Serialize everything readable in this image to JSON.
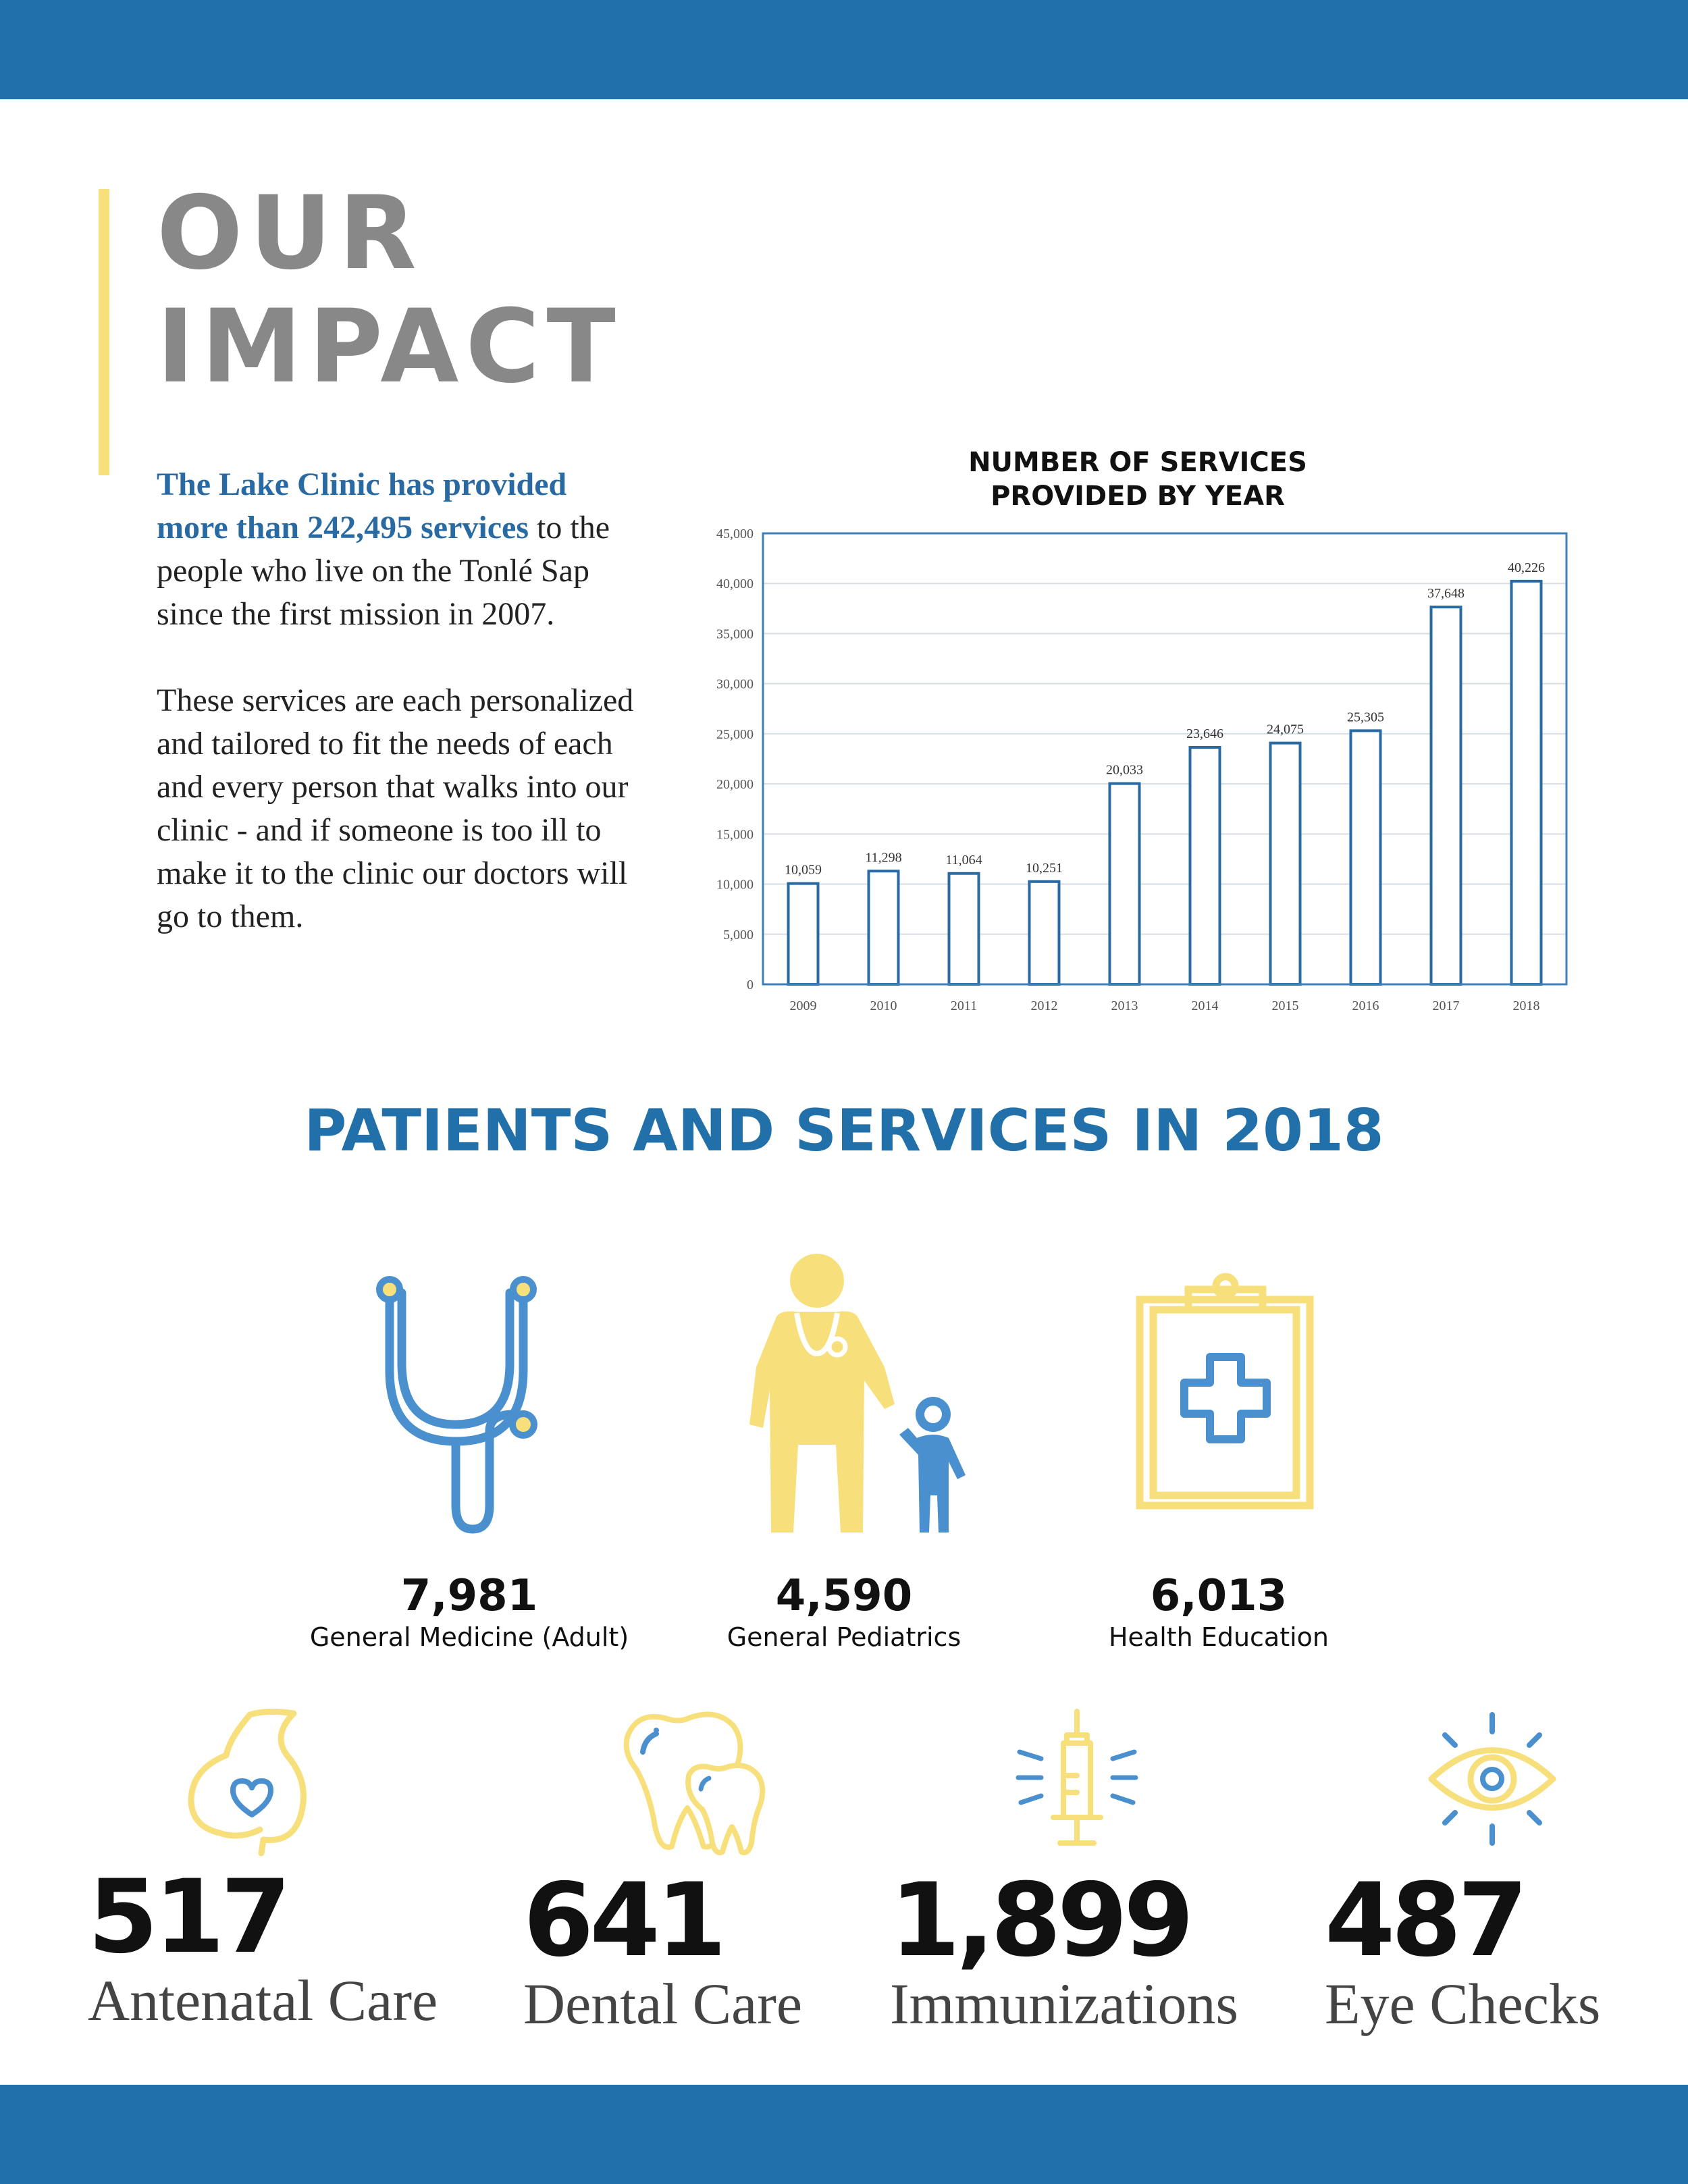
{
  "header": {
    "title_line1": "OUR",
    "title_line2": "IMPACT"
  },
  "intro": {
    "lead": "The Lake Clinic has provided more than 242,495 services",
    "lead_rest": " to the people who live on the Tonlé Sap since the first mission in 2007.",
    "paragraph2": "These services are each personalized and tailored to fit the needs of each and every person that walks into our clinic - and if someone is too ill to make it to the clinic our doctors will go to them."
  },
  "chart_data": {
    "type": "bar",
    "title_line1": "NUMBER OF SERVICES",
    "title_line2": "PROVIDED BY YEAR",
    "categories": [
      "2009",
      "2010",
      "2011",
      "2012",
      "2013",
      "2014",
      "2015",
      "2016",
      "2017",
      "2018"
    ],
    "values": [
      10059,
      11298,
      11064,
      10251,
      20033,
      23646,
      24075,
      25305,
      37648,
      40226
    ],
    "value_labels": [
      "10,059",
      "11,298",
      "11,064",
      "10,251",
      "20,033",
      "23,646",
      "24,075",
      "25,305",
      "37,648",
      "40,226"
    ],
    "yticks": [
      0,
      5000,
      10000,
      15000,
      20000,
      25000,
      30000,
      35000,
      40000,
      45000
    ],
    "ytick_labels": [
      "0",
      "5,000",
      "10,000",
      "15,000",
      "20,000",
      "25,000",
      "30,000",
      "35,000",
      "40,000",
      "45,000"
    ],
    "ylim": [
      0,
      45000
    ],
    "xlabel": "",
    "ylabel": "",
    "grid": true,
    "colors": {
      "bar_stroke": "#2a6aa3",
      "frame": "#3f7fb8",
      "grid": "#d7dde3",
      "tick_text": "#555555"
    }
  },
  "section": {
    "title": "PATIENTS AND SERVICES IN 2018"
  },
  "stats_mid": [
    {
      "icon": "stethoscope-icon",
      "value": "7,981",
      "label": "General Medicine (Adult)"
    },
    {
      "icon": "doctor-child-icon",
      "value": "4,590",
      "label": "General Pediatrics"
    },
    {
      "icon": "clipboard-cross-icon",
      "value": "6,013",
      "label": "Health Education"
    }
  ],
  "stats_big": [
    {
      "icon": "pregnancy-heart-icon",
      "value": "517",
      "label": "Antenatal Care"
    },
    {
      "icon": "teeth-icon",
      "value": "641",
      "label": "Dental Care"
    },
    {
      "icon": "syringe-icon",
      "value": "1,899",
      "label": "Immunizations"
    },
    {
      "icon": "eye-icon",
      "value": "487",
      "label": "Eye Checks"
    }
  ],
  "colors": {
    "brand_blue": "#2270a9",
    "icon_blue": "#4a90cf",
    "icon_yellow": "#f7e07c",
    "heading_gray": "#888888"
  }
}
